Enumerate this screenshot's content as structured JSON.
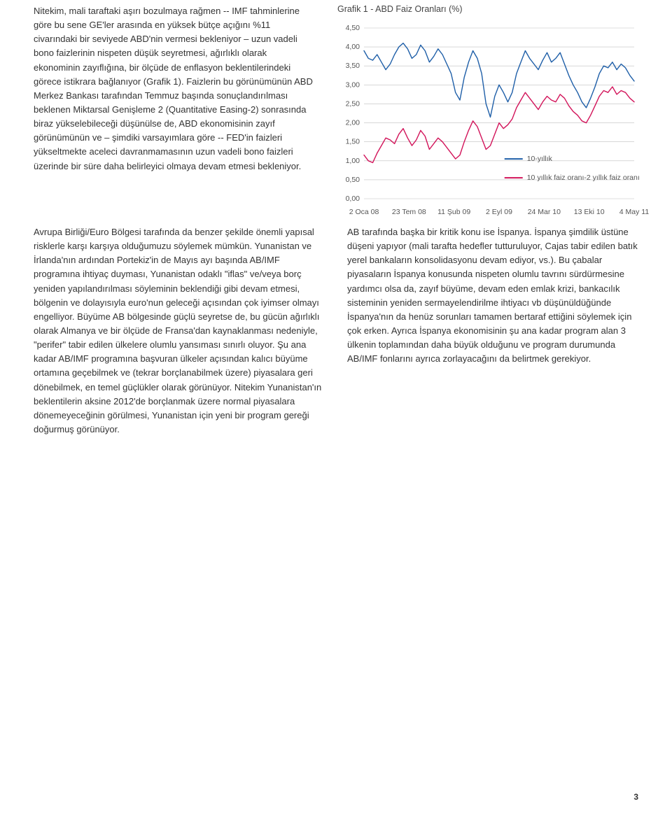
{
  "page_number": "3",
  "left_col": {
    "p1": "Nitekim, mali taraftaki aşırı bozulmaya rağmen -- IMF tahminlerine göre bu sene GE'ler arasında en yüksek bütçe açığını %11 civarındaki bir seviyede ABD'nin vermesi bekleniyor – uzun vadeli bono faizlerinin nispeten düşük seyretmesi, ağırlıklı olarak ekonominin zayıflığına, bir ölçüde de enflasyon beklentilerindeki görece istikrara bağlanıyor (Grafik 1). Faizlerin bu görünümünün ABD Merkez Bankası tarafından Temmuz başında sonuçlandırılması beklenen Miktarsal Genişleme 2 (Quantitative Easing-2) sonrasında biraz yükselebileceği düşünülse de, ABD ekonomisinin zayıf görünümünün ve – şimdiki varsayımlara göre -- FED'in faizleri yükseltmekte aceleci davranmamasının uzun vadeli bono faizleri üzerinde bir süre daha belirleyici olmaya devam etmesi bekleniyor.",
    "p2": "Avrupa Birliği/Euro Bölgesi tarafında da benzer şekilde önemli yapısal risklerle karşı karşıya olduğumuzu söylemek mümkün. Yunanistan ve İrlanda'nın ardından Portekiz'in de Mayıs ayı başında AB/IMF programına ihtiyaç duyması, Yunanistan odaklı \"iflas\" ve/veya borç yeniden yapılandırılması söyleminin beklendiği gibi devam etmesi, bölgenin ve dolayısıyla euro'nun geleceği açısından çok iyimser olmayı engelliyor. Büyüme AB bölgesinde güçlü seyretse de, bu gücün ağırlıklı olarak Almanya ve bir ölçüde de Fransa'dan kaynaklanması nedeniyle, \"perifer\" tabir edilen ülkelere olumlu yansıması sınırlı oluyor. Şu ana kadar AB/IMF programına başvuran ülkeler açısından kalıcı büyüme ortamına geçebilmek ve (tekrar borçlanabilmek üzere) piyasalara geri dönebilmek, en temel güçlükler olarak görünüyor. Nitekim Yunanistan'ın beklentilerin aksine 2012'de borçlanmak üzere normal piyasalara dönemeyeceğinin görülmesi, Yunanistan için yeni bir program gereği doğurmuş görünüyor."
  },
  "right_col": {
    "p1": "AB tarafında başka bir kritik konu ise İspanya. İspanya şimdilik üstüne düşeni yapıyor (mali tarafta hedefler tutturuluyor, Cajas tabir edilen batık yerel bankaların konsolidasyonu devam ediyor, vs.). Bu çabalar piyasaların İspanya konusunda nispeten olumlu tavrını sürdürmesine yardımcı olsa da, zayıf büyüme, devam eden emlak krizi, bankacılık sisteminin yeniden sermayelendirilme ihtiyacı vb düşünüldüğünde İspanya'nın da henüz sorunları tamamen bertaraf ettiğini söylemek için çok erken. Ayrıca İspanya ekonomisinin şu ana kadar program alan 3 ülkenin toplamından daha büyük olduğunu ve program durumunda AB/IMF fonlarını ayrıca zorlayacağını da belirtmek gerekiyor."
  },
  "chart": {
    "title": "Grafik 1 - ABD Faiz Oranları (%)",
    "type": "line",
    "y_ticks": [
      "4,50",
      "4,00",
      "3,50",
      "3,00",
      "2,50",
      "2,00",
      "1,50",
      "1,00",
      "0,50",
      "0,00"
    ],
    "y_min": 0,
    "y_max": 4.5,
    "y_step": 0.5,
    "x_labels": [
      "2 Oca 08",
      "23 Tem 08",
      "11 Şub 09",
      "2 Eyl 09",
      "24 Mar 10",
      "13 Eki 10",
      "4 May 11"
    ],
    "legend": {
      "items": [
        {
          "label": "10-yıllık",
          "color": "#1f5fa8"
        },
        {
          "label": "10 yıllık faiz oranı-2 yıllık faiz oranı",
          "color": "#d2145a"
        }
      ]
    },
    "grid_color": "#bfbfbf",
    "axis_color": "#606060",
    "label_fontsize": 10.5,
    "tick_fontsize": 10.5,
    "line_width": 1.4,
    "background_color": "#ffffff",
    "series1_color": "#1f5fa8",
    "series2_color": "#d2145a",
    "series1": [
      3.9,
      3.7,
      3.65,
      3.8,
      3.6,
      3.4,
      3.55,
      3.8,
      4.0,
      4.1,
      3.95,
      3.7,
      3.8,
      4.05,
      3.9,
      3.6,
      3.75,
      3.95,
      3.8,
      3.55,
      3.3,
      2.8,
      2.6,
      3.2,
      3.6,
      3.9,
      3.7,
      3.3,
      2.5,
      2.15,
      2.7,
      3.0,
      2.8,
      2.55,
      2.8,
      3.3,
      3.6,
      3.9,
      3.7,
      3.55,
      3.4,
      3.65,
      3.85,
      3.6,
      3.7,
      3.85,
      3.55,
      3.25,
      3.0,
      2.8,
      2.55,
      2.4,
      2.65,
      2.95,
      3.3,
      3.5,
      3.45,
      3.6,
      3.4,
      3.55,
      3.45,
      3.25,
      3.1
    ],
    "series2": [
      1.15,
      1.0,
      0.95,
      1.2,
      1.4,
      1.6,
      1.55,
      1.45,
      1.7,
      1.85,
      1.6,
      1.4,
      1.55,
      1.8,
      1.65,
      1.3,
      1.45,
      1.6,
      1.5,
      1.35,
      1.2,
      1.05,
      1.15,
      1.5,
      1.8,
      2.05,
      1.9,
      1.6,
      1.3,
      1.4,
      1.7,
      2.0,
      1.85,
      1.95,
      2.1,
      2.4,
      2.6,
      2.8,
      2.65,
      2.5,
      2.35,
      2.55,
      2.7,
      2.6,
      2.55,
      2.75,
      2.65,
      2.45,
      2.3,
      2.2,
      2.05,
      2.0,
      2.2,
      2.45,
      2.7,
      2.85,
      2.8,
      2.95,
      2.75,
      2.85,
      2.8,
      2.65,
      2.55
    ]
  }
}
